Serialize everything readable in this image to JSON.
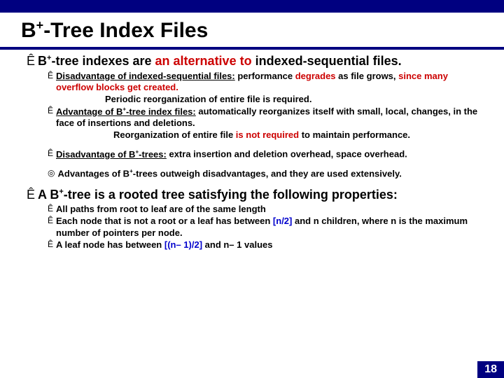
{
  "colors": {
    "navy": "#000080",
    "red": "#cc0000",
    "blue": "#0000cc",
    "black": "#000000",
    "white": "#ffffff"
  },
  "title_parts": {
    "pre": "B",
    "sup": "+",
    "post": "-Tree Index Files"
  },
  "intro": {
    "pre": "B",
    "sup": "+",
    "mid": "-tree indexes are ",
    "red": "an alternative to",
    "post": " indexed-sequential files."
  },
  "sub1": {
    "u_pre": "Disadvantage of indexed-sequential files:",
    "plain1": " performance ",
    "red1": "degrades",
    "plain2": " as file grows, ",
    "red2": "since many overflow blocks get created."
  },
  "sub1_line": "Periodic reorganization of entire file is required.",
  "sub2": {
    "u_pre": "Advantage of B",
    "u_sup": "+",
    "u_post": "-tree index files:",
    "plain1": "  automatically reorganizes itself with small, local, changes, in the face of insertions and deletions."
  },
  "sub2_linea": "Reorganization of entire file ",
  "sub2_red": "is not required",
  "sub2_lineb": " to maintain performance.",
  "sub3": {
    "u_pre": "Disadvantage of B",
    "u_sup": "+",
    "u_post": "-trees:",
    "plain": " extra insertion and deletion overhead, space overhead."
  },
  "sub4": {
    "pre": "Advantages of B",
    "sup": "+",
    "post": "-trees outweigh disadvantages, and they are used extensively."
  },
  "props": {
    "pre": "A B",
    "sup": "+",
    "post": "-tree is a rooted tree satisfying the following properties:"
  },
  "p1": "All paths from root to leaf are of the same length",
  "p2a": "Each node that is not a root or a leaf has between ",
  "p2b": "[n/2]",
  "p2c": " and n children, where n is the maximum number of pointers per node.",
  "p3a": "A leaf node has between ",
  "p3b": "[(n– 1)/2]",
  "p3c": " and n– 1 values",
  "page": "18",
  "arrow_glyph": "Ê",
  "circle_glyph": "◎"
}
